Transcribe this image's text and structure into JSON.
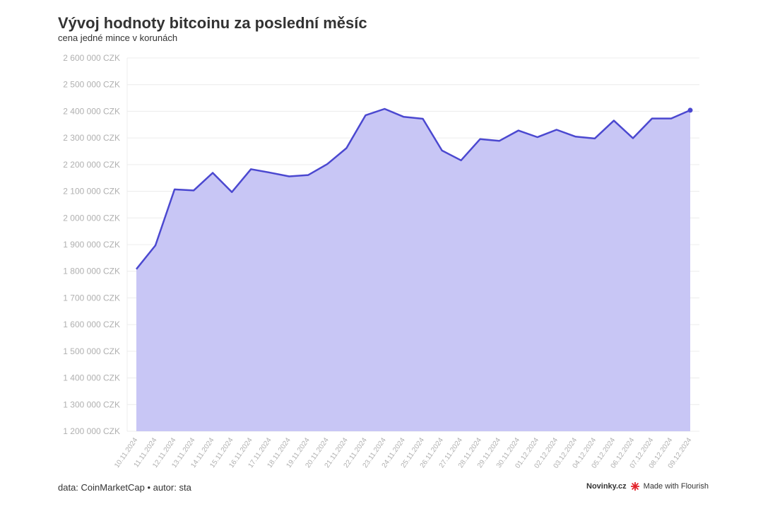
{
  "header": {
    "title": "Vývoj hodnoty bitcoinu za poslední měsíc",
    "subtitle": "cena jedné mince v korunách"
  },
  "footer": {
    "source": "data: CoinMarketCap • autor: sta",
    "brand": "Novinky.cz",
    "made_with": "Made with Flourish"
  },
  "colors": {
    "line": "#4b48d0",
    "area": "#c8c6f5",
    "grid": "#ececec",
    "flourish_mark": "#e3242b"
  },
  "chart_data": {
    "type": "area",
    "title": "Vývoj hodnoty bitcoinu za poslední měsíc",
    "subtitle": "cena jedné mince v korunách",
    "xlabel": "",
    "ylabel": "",
    "y_unit": "CZK",
    "ylim": [
      1200000,
      2600000
    ],
    "y_ticks": [
      1200000,
      1300000,
      1400000,
      1500000,
      1600000,
      1700000,
      1800000,
      1900000,
      2000000,
      2100000,
      2200000,
      2300000,
      2400000,
      2500000,
      2600000
    ],
    "y_tick_labels": [
      "1 200 000 CZK",
      "1 300 000 CZK",
      "1 400 000 CZK",
      "1 500 000 CZK",
      "1 600 000 CZK",
      "1 700 000 CZK",
      "1 800 000 CZK",
      "1 900 000 CZK",
      "2 000 000 CZK",
      "2 100 000 CZK",
      "2 200 000 CZK",
      "2 300 000 CZK",
      "2 400 000 CZK",
      "2 500 000 CZK",
      "2 600 000 CZK"
    ],
    "grid": true,
    "x": [
      "10.11.2024",
      "11.11.2024",
      "12.11.2024",
      "13.11.2024",
      "14.11.2024",
      "15.11.2024",
      "16.11.2024",
      "17.11.2024",
      "18.11.2024",
      "19.11.2024",
      "20.11.2024",
      "21.11.2024",
      "22.11.2024",
      "23.11.2024",
      "24.11.2024",
      "25.11.2024",
      "26.11.2024",
      "27.11.2024",
      "28.11.2024",
      "29.11.2024",
      "30.11.2024",
      "01.12.2024",
      "02.12.2024",
      "03.12.2024",
      "04.12.2024",
      "05.12.2024",
      "06.12.2024",
      "07.12.2024",
      "08.12.2024",
      "09.12.2024"
    ],
    "series": [
      {
        "values": [
          1808000,
          1897000,
          2107000,
          2103000,
          2169000,
          2097000,
          2183000,
          2170000,
          2156000,
          2161000,
          2202000,
          2262000,
          2385000,
          2409000,
          2379000,
          2372000,
          2253000,
          2216000,
          2296000,
          2289000,
          2328000,
          2303000,
          2331000,
          2305000,
          2298000,
          2365000,
          2299000,
          2373000,
          2373000,
          2404000
        ]
      }
    ]
  }
}
